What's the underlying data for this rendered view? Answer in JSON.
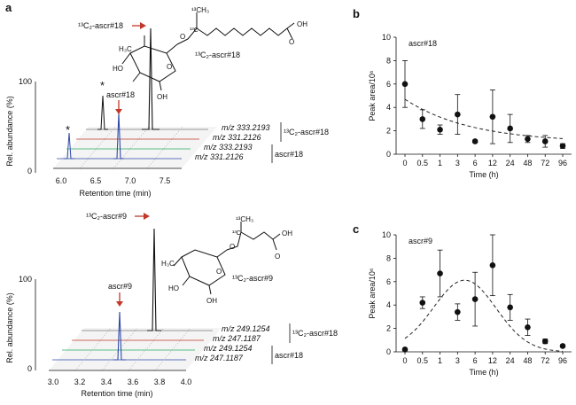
{
  "panels": {
    "a": {
      "label": "a",
      "top": {
        "y_label": "Rel. abundance (%)",
        "y_tick_top": "100",
        "y_tick_bottom": "0",
        "x_label": "Retention time (min)",
        "x_ticks": [
          "6.0",
          "6.5",
          "7.0",
          "7.5"
        ],
        "compound_label": "ascr#18",
        "labeled_compound": "¹³C₂-ascr#18",
        "structure_label": "¹³C₂-ascr#18",
        "star": "*",
        "traces": [
          "m/z 333.2193",
          "m/z 331.2126",
          "m/z 333.2193",
          "m/z 331.2126"
        ],
        "group_labels": [
          "¹³C₂-ascr#18",
          "ascr#18"
        ]
      },
      "bottom": {
        "y_label": "Rel. abundance (%)",
        "y_tick_top": "100",
        "y_tick_bottom": "0",
        "x_label": "Retention time (min)",
        "x_ticks": [
          "3.0",
          "3.2",
          "3.4",
          "3.6",
          "3.8",
          "4.0"
        ],
        "compound_label": "ascr#9",
        "labeled_compound": "¹³C₂-ascr#9",
        "structure_label": "¹³C₂-ascr#9",
        "traces": [
          "m/z 249.1254",
          "m/z 247.1187",
          "m/z 249.1254",
          "m/z 247.1187"
        ],
        "group_labels": [
          "¹³C₂-ascr#18",
          "ascr#18"
        ]
      }
    },
    "b": {
      "label": "b"
    },
    "c": {
      "label": "c"
    }
  },
  "chart_data": [
    {
      "panel": "b",
      "type": "scatter",
      "title": "ascr#18",
      "xlabel": "Time (h)",
      "ylabel": "Peak area/10⁶",
      "categories": [
        "0",
        "0.5",
        "1",
        "3",
        "6",
        "12",
        "24",
        "48",
        "72",
        "96"
      ],
      "ylim": [
        0,
        10
      ],
      "yticks": [
        "0",
        "2",
        "4",
        "6",
        "8",
        "10"
      ],
      "values": [
        6.0,
        3.0,
        2.1,
        3.4,
        1.1,
        3.2,
        2.2,
        1.3,
        1.1,
        0.7
      ],
      "errors": [
        2.0,
        0.8,
        0.4,
        1.7,
        0.1,
        2.3,
        1.2,
        0.3,
        0.5,
        0.2
      ],
      "fit": "exponential decay (dashed)"
    },
    {
      "panel": "c",
      "type": "scatter",
      "title": "ascr#9",
      "xlabel": "Time (h)",
      "ylabel": "Peak area/10⁶",
      "categories": [
        "0",
        "0.5",
        "1",
        "3",
        "6",
        "12",
        "24",
        "48",
        "72",
        "96"
      ],
      "ylim": [
        0,
        10
      ],
      "yticks": [
        "0",
        "2",
        "4",
        "6",
        "8",
        "10"
      ],
      "values": [
        0.2,
        4.2,
        6.7,
        3.4,
        4.5,
        7.4,
        3.8,
        2.1,
        0.9,
        0.5
      ],
      "errors": [
        0.1,
        0.5,
        2.0,
        0.7,
        2.3,
        2.6,
        1.1,
        0.7,
        0.2,
        0.1
      ],
      "fit": "rise and decay (dashed)"
    }
  ]
}
